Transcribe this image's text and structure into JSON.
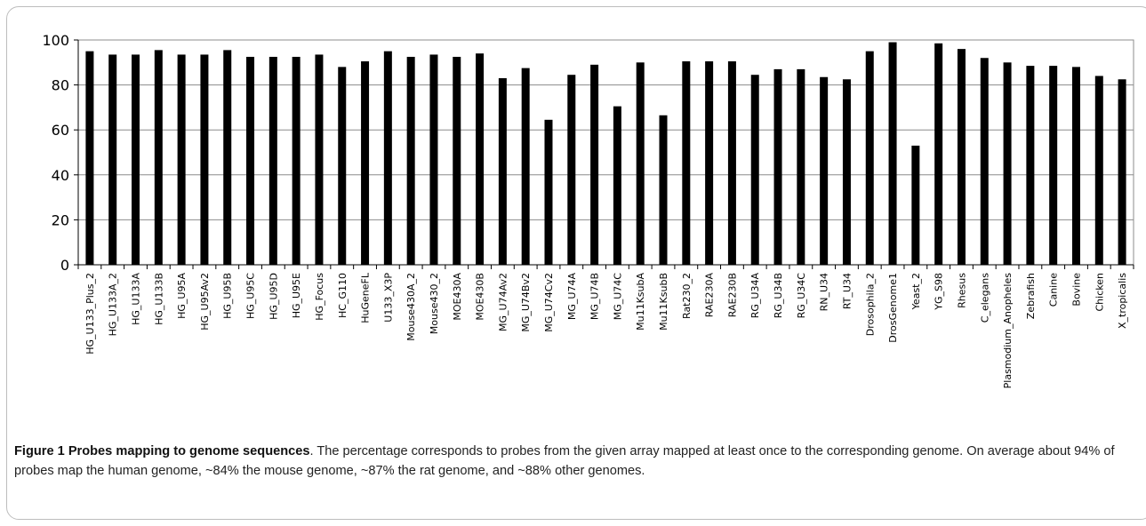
{
  "chart_data": {
    "type": "bar",
    "ylim": [
      0,
      100
    ],
    "yticks": [
      0,
      20,
      40,
      60,
      80,
      100
    ],
    "grid": true,
    "bar_color": "#000000",
    "grid_color": "#8c8c8c",
    "categories": [
      "HG_U133_Plus_2",
      "HG_U133A_2",
      "HG_U133A",
      "HG_U133B",
      "HG_U95A",
      "HG_U95Av2",
      "HG_U95B",
      "HG_U95C",
      "HG_U95D",
      "HG_U95E",
      "HG_Focus",
      "HC_G110",
      "HuGeneFL",
      "U133_X3P",
      "Mouse430A_2",
      "Mouse430_2",
      "MOE430A",
      "MOE430B",
      "MG_U74Av2",
      "MG_U74Bv2",
      "MG_U74Cv2",
      "MG_U74A",
      "MG_U74B",
      "MG_U74C",
      "Mu11KsubA",
      "Mu11KsubB",
      "Rat230_2",
      "RAE230A",
      "RAE230B",
      "RG_U34A",
      "RG_U34B",
      "RG_U34C",
      "RN_U34",
      "RT_U34",
      "Drosophila_2",
      "DrosGenome1",
      "Yeast_2",
      "YG_S98",
      "Rhesus",
      "C_elegans",
      "Plasmodium_Anopheles",
      "Zebrafish",
      "Canine",
      "Bovine",
      "Chicken",
      "X_tropicalis"
    ],
    "values": [
      95,
      93.5,
      93.5,
      95.5,
      93.5,
      93.5,
      95.5,
      92.5,
      92.5,
      92.5,
      93.5,
      88,
      90.5,
      95,
      92.5,
      93.5,
      92.5,
      94,
      83,
      87.5,
      64.5,
      84.5,
      89,
      70.5,
      90,
      66.5,
      90.5,
      90.5,
      90.5,
      84.5,
      87,
      87,
      83.5,
      82.5,
      95,
      99,
      53,
      98.5,
      96,
      92,
      90,
      88.5,
      88.5,
      88,
      84,
      82.5
    ]
  },
  "caption": {
    "label": "Figure 1 Probes mapping to genome sequences",
    "text": ". The percentage corresponds to probes from the given array mapped at least once to the corresponding genome. On average about 94% of probes map the human genome, ~84% the mouse genome, ~87% the rat genome, and ~88% other genomes."
  }
}
